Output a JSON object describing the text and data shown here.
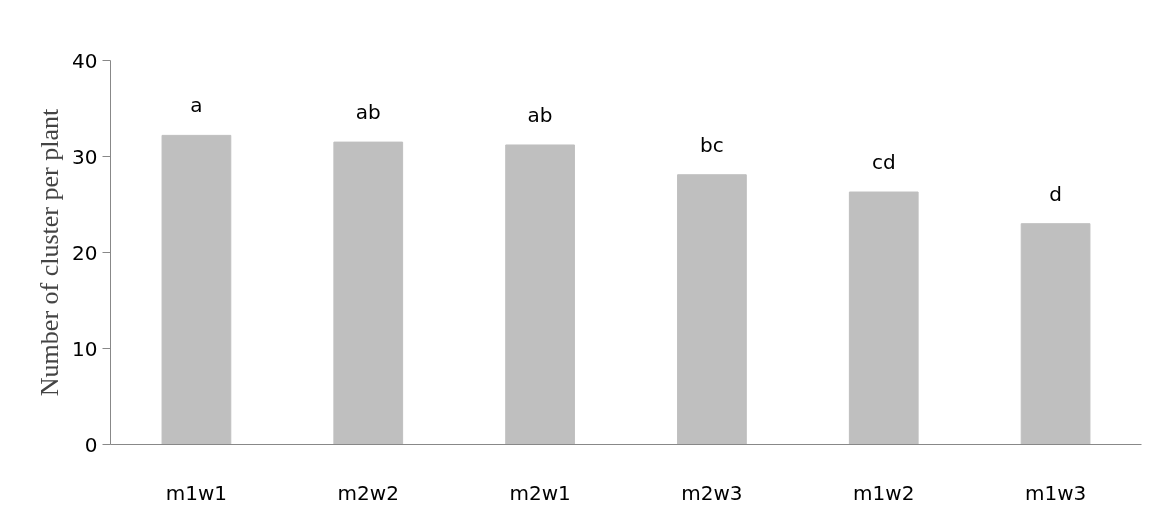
{
  "chart_data": {
    "type": "bar",
    "ylabel": "Number of cluster per plant",
    "categories": [
      "m1w1",
      "m2w2",
      "m2w1",
      "m2w3",
      "m1w2",
      "m1w3"
    ],
    "values": [
      32.2,
      31.5,
      31.2,
      28.1,
      26.3,
      23.0
    ],
    "value_labels": [
      "a",
      "ab",
      "ab",
      "bc",
      "cd",
      "d"
    ],
    "color": "#bfbfbf",
    "ylim": [
      0,
      40
    ],
    "yticks": [
      0,
      10,
      20,
      30,
      40
    ],
    "grid": false
  }
}
